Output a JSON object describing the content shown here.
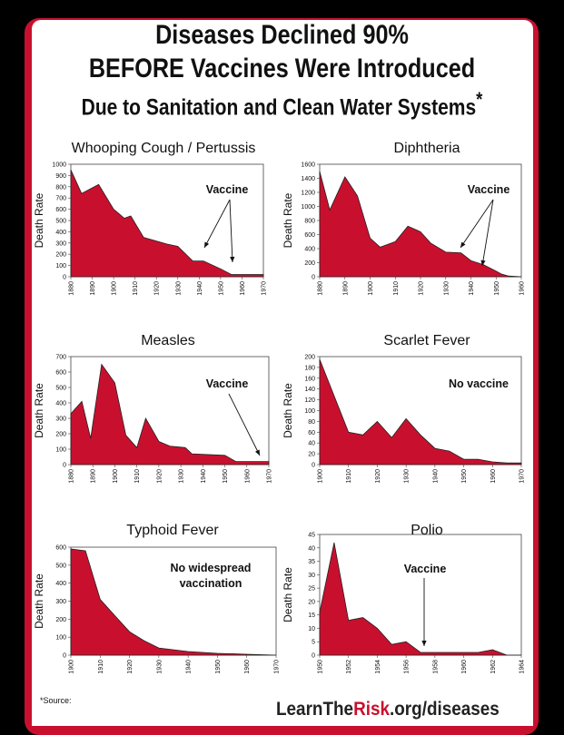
{
  "header": {
    "line1": "Diseases Declined 90%",
    "line2": "BEFORE Vaccines Were Introduced",
    "line3": "Due to Sanitation and Clean Water Systems",
    "asterisk": "*"
  },
  "footer": {
    "source_label": "*Source:",
    "url_prefix": "LearnThe",
    "url_highlight": "Risk",
    "url_suffix": ".org/diseases"
  },
  "colors": {
    "fill": "#c8102e",
    "frame": "#c8102e"
  },
  "chart_data": [
    {
      "type": "area",
      "title": "Whooping Cough / Pertussis",
      "ylabel": "Death Rate",
      "xlim": [
        1880,
        1970
      ],
      "ylim": [
        0,
        1000
      ],
      "yticks": [
        0,
        100,
        200,
        300,
        400,
        500,
        600,
        700,
        800,
        900,
        1000
      ],
      "xticks": [
        "1880",
        "1890",
        "1900",
        "1910",
        "1920",
        "1930",
        "1940",
        "1950",
        "1960",
        "1970"
      ],
      "x": [
        1880,
        1885,
        1893,
        1900,
        1905,
        1908,
        1914,
        1925,
        1930,
        1937,
        1942,
        1950,
        1955,
        1970
      ],
      "y": [
        950,
        740,
        820,
        600,
        520,
        540,
        350,
        290,
        270,
        140,
        140,
        70,
        20,
        20
      ],
      "annotation": "Vaccine",
      "annotation_year": 1949
    },
    {
      "type": "area",
      "title": "Diphtheria",
      "ylabel": "Death Rate",
      "xlim": [
        1880,
        1960
      ],
      "ylim": [
        0,
        1600
      ],
      "yticks": [
        0,
        200,
        400,
        600,
        800,
        1000,
        1200,
        1400,
        1600
      ],
      "xticks": [
        "1880",
        "1890",
        "1900",
        "1910",
        "1920",
        "1930",
        "1940",
        "1950",
        "1960"
      ],
      "x": [
        1880,
        1884,
        1890,
        1895,
        1900,
        1904,
        1910,
        1915,
        1920,
        1924,
        1930,
        1936,
        1940,
        1945,
        1950,
        1952,
        1955,
        1960
      ],
      "y": [
        1500,
        950,
        1420,
        1150,
        550,
        420,
        500,
        720,
        640,
        480,
        350,
        340,
        230,
        170,
        80,
        40,
        10,
        0
      ],
      "annotation": "Vaccine",
      "annotation_year": 1955
    },
    {
      "type": "area",
      "title": "Measles",
      "ylabel": "Death Rate",
      "xlim": [
        1880,
        1970
      ],
      "ylim": [
        0,
        700
      ],
      "yticks": [
        0,
        100,
        200,
        300,
        400,
        500,
        600,
        700
      ],
      "xticks": [
        "1880",
        "1890",
        "1900",
        "1910",
        "1920",
        "1930",
        "1940",
        "1950",
        "1960",
        "1970"
      ],
      "x": [
        1880,
        1885,
        1889,
        1894,
        1900,
        1905,
        1910,
        1914,
        1920,
        1925,
        1932,
        1935,
        1950,
        1955,
        1970
      ],
      "y": [
        330,
        410,
        170,
        650,
        530,
        190,
        110,
        300,
        150,
        120,
        110,
        70,
        60,
        20,
        20
      ],
      "annotation": "Vaccine",
      "annotation_year": 1963
    },
    {
      "type": "area",
      "title": "Scarlet Fever",
      "ylabel": "Death Rate",
      "xlim": [
        1900,
        1970
      ],
      "ylim": [
        0,
        200
      ],
      "yticks": [
        0,
        20,
        40,
        60,
        80,
        100,
        120,
        140,
        160,
        180,
        200
      ],
      "xticks": [
        "1900",
        "1910",
        "1920",
        "1930",
        "1940",
        "1950",
        "1960",
        "1970"
      ],
      "x": [
        1900,
        1910,
        1915,
        1920,
        1925,
        1930,
        1935,
        1940,
        1945,
        1950,
        1955,
        1960,
        1965,
        1970
      ],
      "y": [
        195,
        60,
        55,
        80,
        50,
        85,
        55,
        30,
        25,
        10,
        10,
        5,
        3,
        3
      ],
      "annotation": "No vaccine"
    },
    {
      "type": "area",
      "title": "Typhoid Fever",
      "ylabel": "Death Rate",
      "xlim": [
        1900,
        1970
      ],
      "ylim": [
        0,
        600
      ],
      "yticks": [
        0,
        100,
        200,
        300,
        400,
        500,
        600
      ],
      "xticks": [
        "1900",
        "1910",
        "1920",
        "1930",
        "1940",
        "1950",
        "1960",
        "1970"
      ],
      "x": [
        1900,
        1905,
        1910,
        1915,
        1920,
        1925,
        1930,
        1940,
        1950,
        1960,
        1970
      ],
      "y": [
        590,
        580,
        310,
        220,
        130,
        80,
        40,
        20,
        10,
        5,
        0
      ],
      "annotation": "No widespread\nvaccination"
    },
    {
      "type": "area",
      "title": "Polio",
      "ylabel": "Death Rate",
      "xlim": [
        1950,
        1964
      ],
      "ylim": [
        0,
        45
      ],
      "yticks": [
        0,
        5,
        10,
        15,
        20,
        25,
        30,
        35,
        40,
        45
      ],
      "xticks": [
        "1950",
        "1952",
        "1954",
        "1956",
        "1958",
        "1960",
        "1962",
        "1964"
      ],
      "x": [
        1950,
        1951,
        1952,
        1953,
        1954,
        1955,
        1956,
        1957,
        1958,
        1959,
        1960,
        1961,
        1962,
        1963,
        1964
      ],
      "y": [
        16,
        42,
        13,
        14,
        10,
        4,
        5,
        1,
        1,
        1,
        1,
        1,
        2,
        0,
        0
      ],
      "annotation": "Vaccine",
      "annotation_year": 1955
    }
  ]
}
